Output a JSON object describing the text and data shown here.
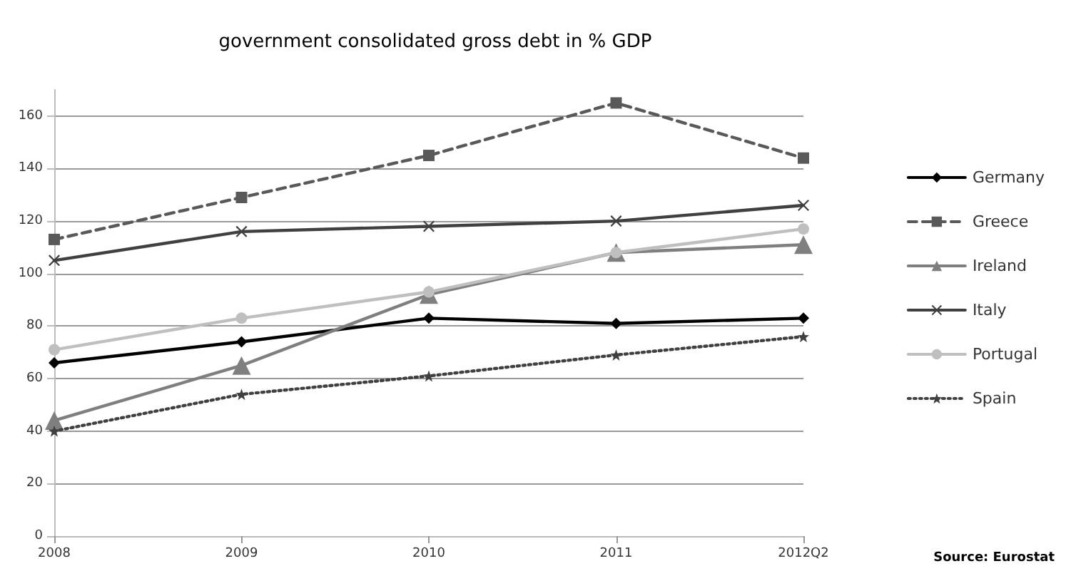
{
  "chart_data": {
    "type": "line",
    "title": "government consolidated gross debt in % GDP",
    "categories": [
      "2008",
      "2009",
      "2010",
      "2011",
      "2012Q2"
    ],
    "series": [
      {
        "name": "Germany",
        "color": "#000000",
        "marker": "diamond",
        "line_style": "solid",
        "values": [
          66,
          74,
          83,
          81,
          83
        ]
      },
      {
        "name": "Greece",
        "color": "#595959",
        "marker": "square",
        "line_style": "dashed",
        "values": [
          113,
          129,
          145,
          165,
          144
        ]
      },
      {
        "name": "Ireland",
        "color": "#7f7f7f",
        "marker": "triangle",
        "line_style": "solid",
        "values": [
          44,
          65,
          92,
          108,
          111
        ]
      },
      {
        "name": "Italy",
        "color": "#404040",
        "marker": "cross",
        "line_style": "solid",
        "values": [
          105,
          116,
          118,
          120,
          126
        ]
      },
      {
        "name": "Portugal",
        "color": "#bfbfbf",
        "marker": "circle",
        "line_style": "solid",
        "values": [
          71,
          83,
          93,
          108,
          117
        ]
      },
      {
        "name": "Spain",
        "color": "#404040",
        "marker": "star",
        "line_style": "dotted",
        "values": [
          40,
          54,
          61,
          69,
          76
        ]
      }
    ],
    "ylim": [
      0,
      170
    ],
    "yticks": [
      0,
      20,
      40,
      60,
      80,
      100,
      120,
      140,
      160
    ],
    "grid": "y",
    "legend": "right",
    "annotations": [
      "Source: Eurostat"
    ]
  }
}
